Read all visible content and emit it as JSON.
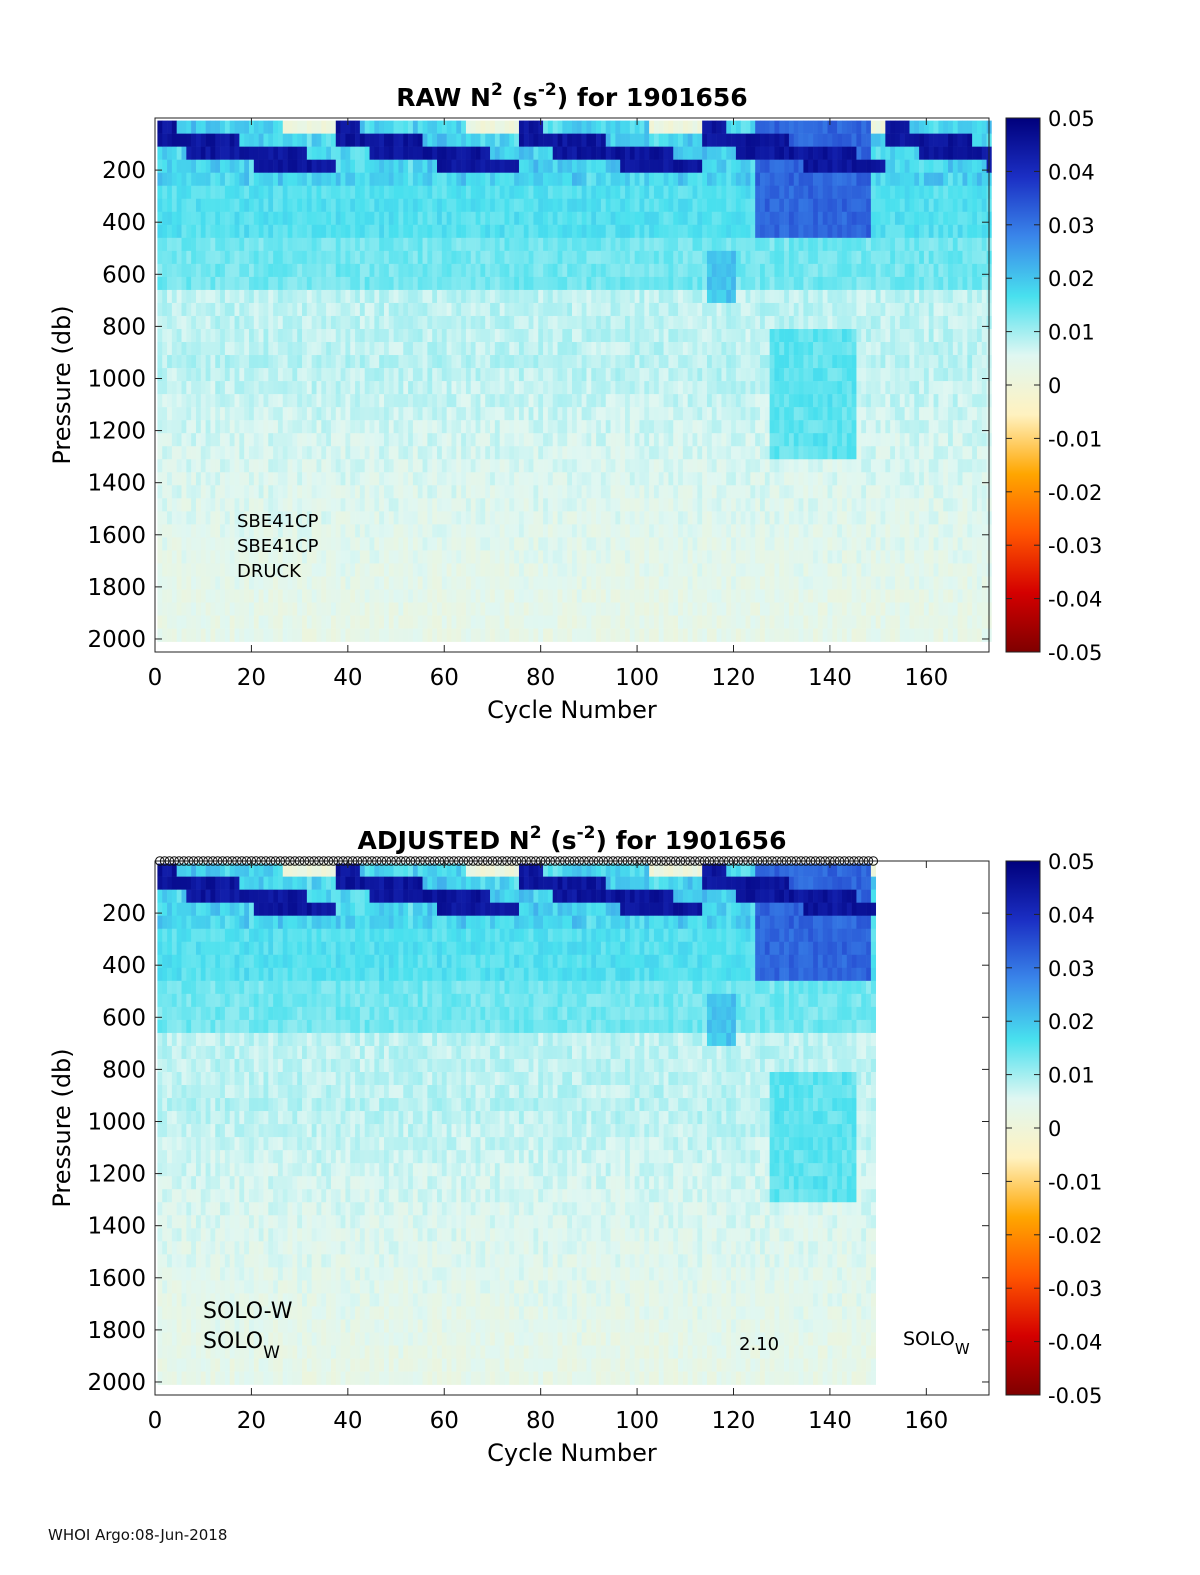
{
  "footer": "WHOI Argo:08-Jun-2018",
  "colorbar": {
    "ticks": [
      "0.05",
      "0.04",
      "0.03",
      "0.02",
      "0.01",
      "0",
      "-0.01",
      "-0.02",
      "-0.03",
      "-0.04",
      "-0.05"
    ],
    "stops": [
      "#7f0000",
      "#d40000",
      "#ff5500",
      "#ffa600",
      "#fff2c0",
      "#dff7f2",
      "#48e0ee",
      "#3a86ea",
      "#1b2fc4",
      "#00007c"
    ]
  },
  "chart_data": [
    {
      "type": "heatmap",
      "title": "RAW N² (s⁻²) for 1901656",
      "title_parts": {
        "a": "RAW N",
        "b": "2",
        "c": " (s",
        "d": "-2",
        "e": ") for 1901656"
      },
      "xlabel": "Cycle Number",
      "ylabel": "Pressure (db)",
      "xlim": [
        0,
        173
      ],
      "ylim": [
        2050,
        0
      ],
      "x_ticks": [
        0,
        20,
        40,
        60,
        80,
        100,
        120,
        140,
        160
      ],
      "y_ticks": [
        200,
        400,
        600,
        800,
        1000,
        1200,
        1400,
        1600,
        1800,
        2000
      ],
      "clim": [
        -0.05,
        0.05
      ],
      "n_cycles": 173,
      "max_pressure": 2000,
      "annotation_lines": [
        "SBE41CP",
        "SBE41CP",
        "DRUCK"
      ],
      "extra_labels": []
    },
    {
      "type": "heatmap",
      "title": "ADJUSTED N² (s⁻²) for 1901656",
      "title_parts": {
        "a": "ADJUSTED N",
        "b": "2",
        "c": " (s",
        "d": "-2",
        "e": ") for 1901656"
      },
      "xlabel": "Cycle Number",
      "ylabel": "Pressure (db)",
      "xlim": [
        0,
        173
      ],
      "ylim": [
        2050,
        0
      ],
      "x_ticks": [
        0,
        20,
        40,
        60,
        80,
        100,
        120,
        140,
        160
      ],
      "y_ticks": [
        200,
        400,
        600,
        800,
        1000,
        1200,
        1400,
        1600,
        1800,
        2000
      ],
      "clim": [
        -0.05,
        0.05
      ],
      "n_cycles": 149,
      "max_pressure": 2000,
      "adjusted_markers": true,
      "annotation_lines": [
        "SOLO-W",
        "SOLO_W"
      ],
      "extra_labels": [
        "2.10",
        "SOLO_W"
      ]
    }
  ]
}
